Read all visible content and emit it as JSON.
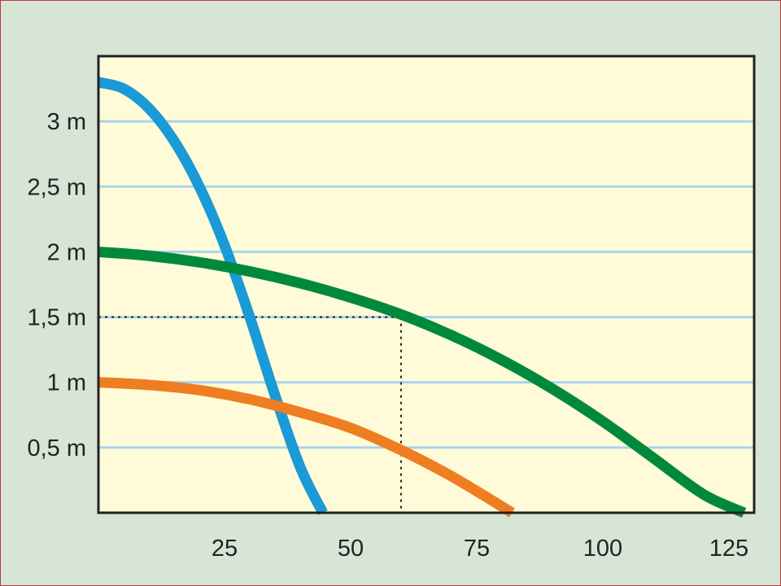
{
  "chart_data": {
    "type": "line",
    "title": "",
    "xlabel": "",
    "ylabel": "",
    "xlim": [
      0,
      130
    ],
    "ylim": [
      0,
      3.5
    ],
    "x_ticks": [
      25,
      50,
      75,
      100,
      125
    ],
    "x_tick_labels": [
      "25",
      "50",
      "75",
      "100",
      "125"
    ],
    "y_ticks": [
      0.5,
      1,
      1.5,
      2,
      2.5,
      3
    ],
    "y_tick_labels": [
      "0,5 m",
      "1 m",
      "1,5 m",
      "2 m",
      "2,5 m",
      "3 m"
    ],
    "grid": "horizontal",
    "series": [
      {
        "color": "#1a9ad6",
        "x": [
          0,
          5,
          10,
          15,
          20,
          25,
          30,
          35,
          40,
          44.5
        ],
        "y": [
          3.3,
          3.25,
          3.1,
          2.85,
          2.5,
          2.05,
          1.5,
          0.9,
          0.35,
          0
        ]
      },
      {
        "color": "#00893d",
        "x": [
          0,
          10,
          20,
          30,
          40,
          50,
          60,
          70,
          80,
          90,
          100,
          110,
          120,
          128
        ],
        "y": [
          2.0,
          1.97,
          1.92,
          1.85,
          1.76,
          1.65,
          1.52,
          1.36,
          1.17,
          0.95,
          0.7,
          0.42,
          0.14,
          0
        ]
      },
      {
        "color": "#ef7d22",
        "x": [
          0,
          10,
          20,
          30,
          40,
          50,
          60,
          70,
          82
        ],
        "y": [
          1.0,
          0.98,
          0.94,
          0.87,
          0.77,
          0.65,
          0.48,
          0.28,
          0
        ]
      }
    ],
    "reference_point": {
      "x": 60,
      "y": 1.5
    },
    "colors": {
      "plot_background": "#fffbd9",
      "page_background": "#d7e5d7",
      "grid": "#a9d3ee",
      "reference_lines": "#222222"
    }
  }
}
